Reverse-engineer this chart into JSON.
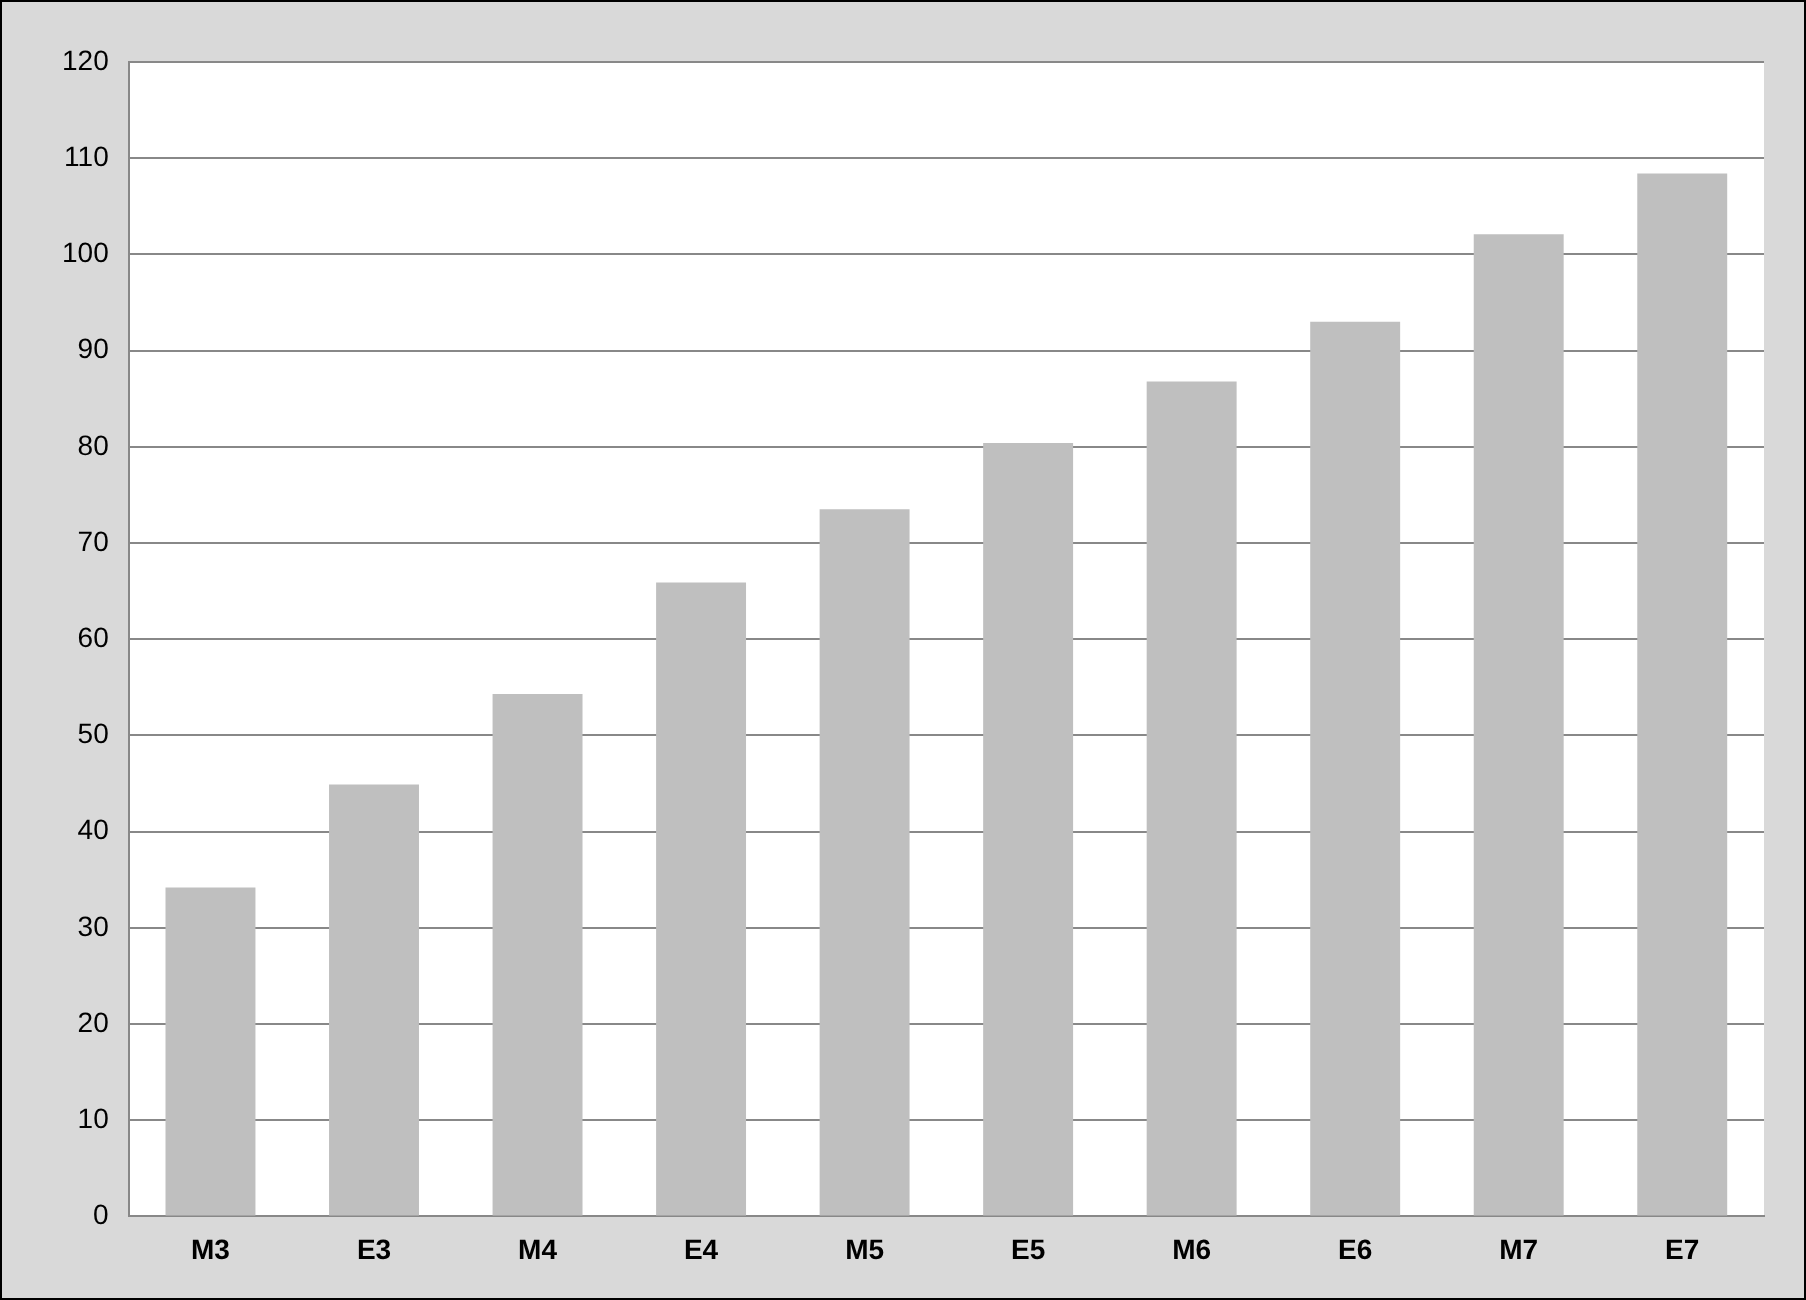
{
  "chart_data": {
    "type": "bar",
    "categories": [
      "M3",
      "E3",
      "M4",
      "E4",
      "M5",
      "E5",
      "M6",
      "E6",
      "M7",
      "E7"
    ],
    "values": [
      34.2,
      44.9,
      54.3,
      65.9,
      73.5,
      80.4,
      86.8,
      93.0,
      102.1,
      108.4
    ],
    "color": "#bfbfbf",
    "ylim": [
      0,
      120
    ],
    "yticks": [
      0,
      10,
      20,
      30,
      40,
      50,
      60,
      70,
      80,
      90,
      100,
      110,
      120
    ],
    "grid": "y",
    "legend": false
  }
}
